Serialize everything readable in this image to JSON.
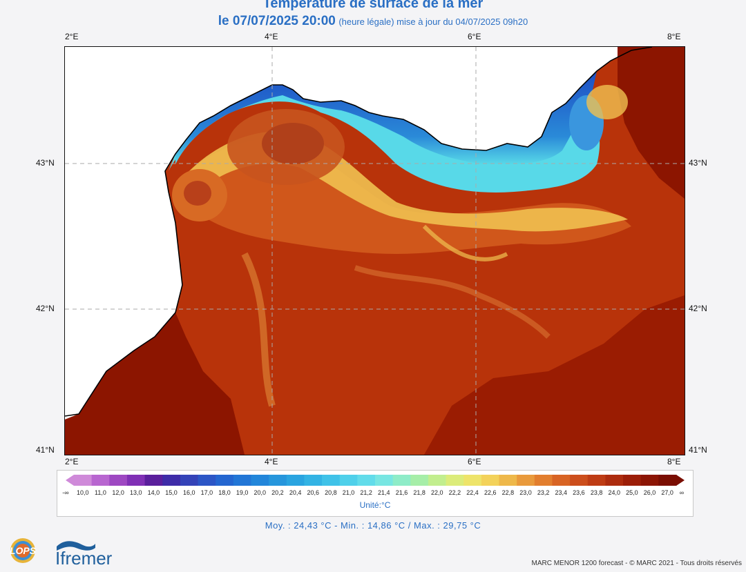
{
  "header": {
    "title": "Température de surface de la mer",
    "date": "le 07/07/2025 20:00",
    "subtitle_rest": "(heure légale) mise à jour du 04/07/2025 09h20"
  },
  "map": {
    "longitude_ticks": [
      "2°E",
      "4°E",
      "6°E",
      "8°E"
    ],
    "latitude_ticks": [
      "43°N",
      "42°N",
      "41°N"
    ],
    "colors": {
      "land": "#ffffff",
      "coast": "#000000",
      "sea_warm": "#b8330a",
      "sea_hot": "#8c1500",
      "sea_mid": "#e0781e",
      "sea_yellow": "#f3d25a",
      "sea_cyan": "#58d9e8",
      "sea_blue": "#2a8ad8",
      "sea_deep_blue": "#1d56c8"
    }
  },
  "colorbar": {
    "low_arrow": "-∞",
    "high_arrow": "∞",
    "labels": [
      "10,0",
      "11,0",
      "12,0",
      "13,0",
      "14,0",
      "15,0",
      "16,0",
      "17,0",
      "18,0",
      "19,0",
      "20,0",
      "20,2",
      "20,4",
      "20,6",
      "20,8",
      "21,0",
      "21,2",
      "21,4",
      "21,6",
      "21,8",
      "22,0",
      "22,2",
      "22,4",
      "22,6",
      "22,8",
      "23,0",
      "23,2",
      "23,4",
      "23,6",
      "23,8",
      "24,0",
      "25,0",
      "26,0",
      "27,0"
    ],
    "colors": [
      "#cf8ad9",
      "#b866d0",
      "#9e48c2",
      "#8030b5",
      "#5a1f9c",
      "#3e2ca8",
      "#3443b8",
      "#2c56c6",
      "#2466d0",
      "#2276d6",
      "#2286da",
      "#2696dc",
      "#2aa4e0",
      "#33b3e4",
      "#3fc2e8",
      "#4fd0ea",
      "#62dcea",
      "#78e6e2",
      "#8eecc8",
      "#a6eea8",
      "#c2ee8e",
      "#dcec7a",
      "#eee46a",
      "#f3d25a",
      "#eeb84a",
      "#e99a3c",
      "#e27e2e",
      "#d86424",
      "#cc4e1c",
      "#be3c14",
      "#ad2c0e",
      "#9c1e08",
      "#8c1504",
      "#7a0e02"
    ],
    "unit": "Unité:°C"
  },
  "stats": {
    "text": "Moy. : 24,43 °C   -   Min. : 14,86 °C / Max. : 29,75 °C"
  },
  "footer": {
    "lops_logo": "LOPS",
    "ifremer_logo": "Ifremer",
    "credit": "MARC MENOR 1200 forecast - © MARC 2021 - Tous droits réservés"
  }
}
